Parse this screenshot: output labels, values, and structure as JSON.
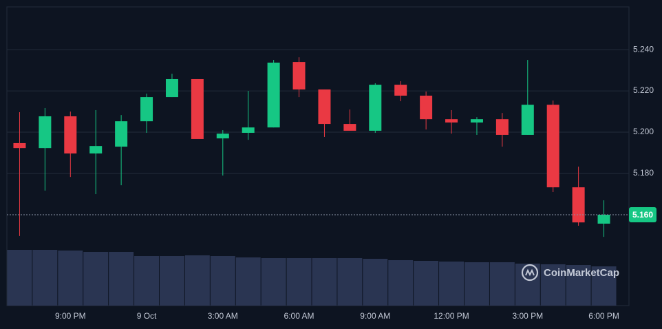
{
  "chart_data": {
    "type": "candlestick",
    "categories": [
      null,
      null,
      "9:00 PM",
      null,
      null,
      "9 Oct",
      null,
      null,
      "3:00 AM",
      null,
      null,
      "6:00 AM",
      null,
      null,
      "9:00 AM",
      null,
      null,
      "12:00 PM",
      null,
      null,
      "3:00 PM",
      null,
      null,
      "6:00 PM"
    ],
    "open": [
      5.1947,
      5.1923,
      5.2077,
      5.1897,
      5.193,
      5.2053,
      5.217,
      5.2257,
      5.197,
      5.1997,
      5.2023,
      5.234,
      5.2207,
      5.204,
      5.2007,
      5.223,
      5.2177,
      5.2063,
      5.2047,
      5.2063,
      5.1987,
      5.2133,
      5.1733,
      5.1557
    ],
    "high": [
      5.2097,
      5.2117,
      5.21,
      5.2107,
      5.2083,
      5.2187,
      5.2283,
      5.2257,
      5.201,
      5.22,
      5.235,
      5.2363,
      5.2207,
      5.211,
      5.2237,
      5.2247,
      5.2197,
      5.2107,
      5.2073,
      5.2093,
      5.235,
      5.2153,
      5.1833,
      5.167
    ],
    "low": [
      5.1497,
      5.1717,
      5.1783,
      5.17,
      5.1743,
      5.1997,
      5.217,
      5.1967,
      5.179,
      5.1963,
      5.2023,
      5.217,
      5.1977,
      5.2007,
      5.1997,
      5.215,
      5.2013,
      5.1993,
      5.1987,
      5.193,
      5.1987,
      5.171,
      5.1547,
      5.1493
    ],
    "close": [
      5.1923,
      5.2077,
      5.1897,
      5.1933,
      5.2053,
      5.217,
      5.2257,
      5.1967,
      5.1993,
      5.2023,
      5.2337,
      5.2207,
      5.204,
      5.2007,
      5.223,
      5.2177,
      5.2063,
      5.2047,
      5.2063,
      5.1987,
      5.2133,
      5.1733,
      5.1563,
      5.16
    ],
    "volume": [
      81,
      81,
      80,
      78,
      78,
      72,
      72,
      73,
      72,
      70,
      69,
      69,
      69,
      69,
      68,
      66,
      65,
      64,
      63,
      63,
      61,
      60,
      59,
      57
    ],
    "up_color": "#16c784",
    "down_color": "#ea3943",
    "volume_color": "#2a3552",
    "ylim": [
      5.116,
      5.2607
    ],
    "y2lim": [
      0,
      434
    ],
    "yticks": [
      {
        "value": 5.18,
        "label": "5.180"
      },
      {
        "value": 5.2,
        "label": "5.200"
      },
      {
        "value": 5.22,
        "label": "5.220"
      },
      {
        "value": 5.24,
        "label": "5.240"
      }
    ],
    "last_price": {
      "value": 5.16,
      "label": "5.160"
    },
    "grid": true,
    "watermark": "CoinMarketCap"
  }
}
